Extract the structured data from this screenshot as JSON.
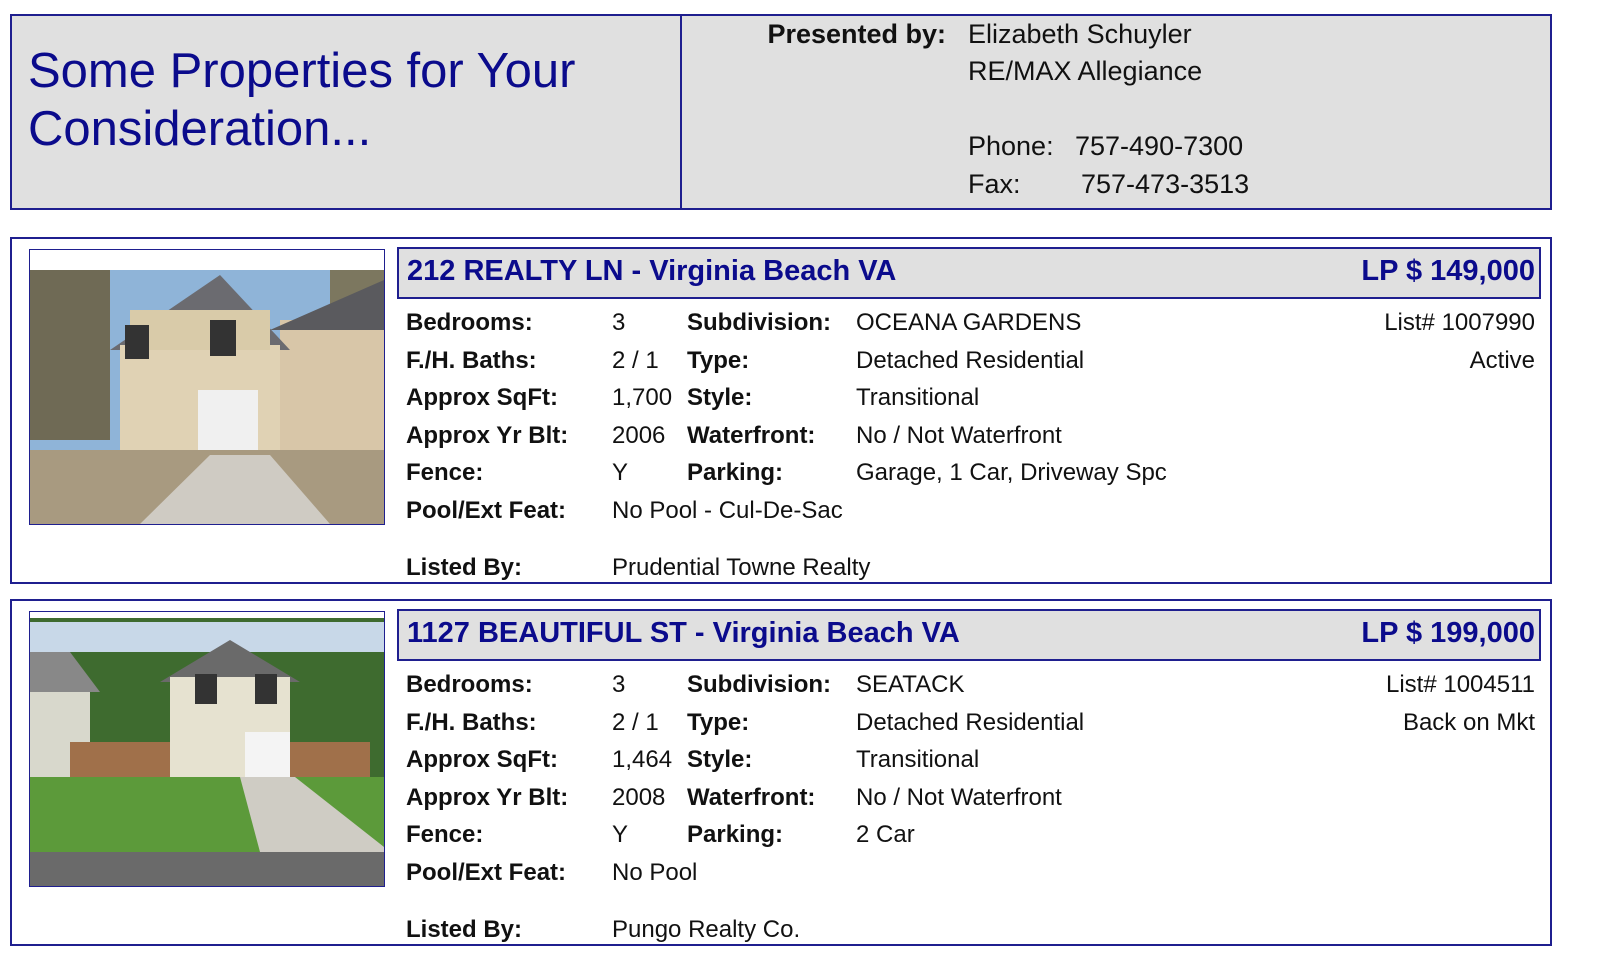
{
  "header": {
    "title_line1": "Some Properties for Your",
    "title_line2": "Consideration...",
    "presented_by_label": "Presented by:",
    "agent_name": "Elizabeth Schuyler",
    "agency": "RE/MAX Allegiance",
    "phone_label": "Phone:",
    "phone": "757-490-7300",
    "fax_label": "Fax:",
    "fax": "757-473-3513"
  },
  "labels": {
    "bedrooms": "Bedrooms:",
    "baths": "F./H. Baths:",
    "sqft": "Approx SqFt:",
    "yr_blt": "Approx Yr Blt:",
    "fence": "Fence:",
    "pool": "Pool/Ext Feat:",
    "listed_by": "Listed By:",
    "subdivision": "Subdivision:",
    "type": "Type:",
    "style": "Style:",
    "waterfront": "Waterfront:",
    "parking": "Parking:"
  },
  "colors": {
    "accent": "#0b0b8c",
    "panel": "#e0e0e0",
    "border": "#1f1f8f"
  },
  "listings": [
    {
      "address": "212 REALTY LN - Virginia Beach VA",
      "price": "LP $ 149,000",
      "bedrooms": "3",
      "baths": "2 / 1",
      "sqft": "1,700",
      "yr_blt": "2006",
      "fence": "Y",
      "pool": "No Pool - Cul-De-Sac",
      "listed_by": "Prudential Towne Realty",
      "subdivision": "OCEANA GARDENS",
      "type": "Detached Residential",
      "style": "Transitional",
      "waterfront": "No / Not Waterfront",
      "parking": "Garage, 1 Car, Driveway Spc",
      "list_no": "List# 1007990",
      "status": "Active"
    },
    {
      "address": "1127 BEAUTIFUL ST - Virginia Beach VA",
      "price": "LP $ 199,000",
      "bedrooms": "3",
      "baths": "2 / 1",
      "sqft": "1,464",
      "yr_blt": "2008",
      "fence": "Y",
      "pool": "No Pool",
      "listed_by": "Pungo Realty Co.",
      "subdivision": "SEATACK",
      "type": "Detached Residential",
      "style": "Transitional",
      "waterfront": "No / Not Waterfront",
      "parking": "2 Car",
      "list_no": "List# 1004511",
      "status": "Back on Mkt"
    }
  ]
}
